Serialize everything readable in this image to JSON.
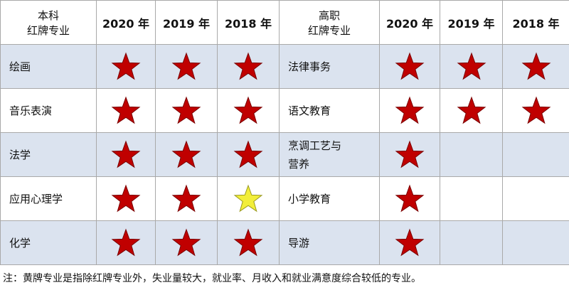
{
  "table": {
    "columns": [
      [
        "本科",
        "红牌专业"
      ],
      "2020 年",
      "2019 年",
      "2018 年",
      [
        "高职",
        "红牌专业"
      ],
      "2020 年",
      "2019 年",
      "2018 年"
    ],
    "rows": [
      [
        "绘画",
        "red",
        "red",
        "red",
        "法律事务",
        "red",
        "red",
        "red"
      ],
      [
        "音乐表演",
        "red",
        "red",
        "red",
        "语文教育",
        "red",
        "red",
        "red"
      ],
      [
        "法学",
        "red",
        "red",
        "red",
        "烹调工艺与营养",
        "red",
        null,
        null
      ],
      [
        "应用心理学",
        "red",
        "red",
        "yellow",
        "小学教育",
        "red",
        null,
        null
      ],
      [
        "化学",
        "red",
        "red",
        "red",
        "导游",
        "red",
        null,
        null
      ]
    ]
  },
  "note": "注：黄牌专业是指除红牌专业外，失业量较大，就业率、月收入和就业满意度综合较低的专业。"
}
